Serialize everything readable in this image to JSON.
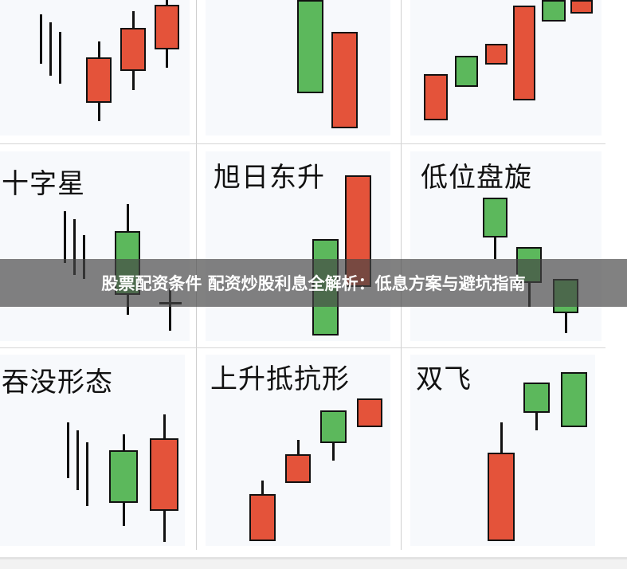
{
  "patterns": [
    {
      "label": ""
    },
    {
      "label": ""
    },
    {
      "label": ""
    },
    {
      "label": "十字星"
    },
    {
      "label": "旭日东升"
    },
    {
      "label": "低位盘旋"
    },
    {
      "label": "吞没形态"
    },
    {
      "label": "上升抵抗形"
    },
    {
      "label": "双飞"
    }
  ],
  "banner": {
    "title": "股票配资条件 配资炒股利息全解析：低息方案与避坑指南"
  },
  "colors": {
    "bullish": "#5cb85c",
    "bearish": "#e4533a",
    "outline": "#111111"
  }
}
